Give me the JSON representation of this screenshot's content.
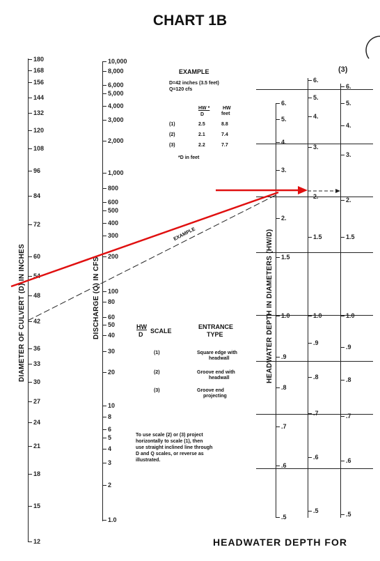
{
  "title": "CHART 1B",
  "footer": "HEADWATER DEPTH FOR",
  "axes": {
    "diameter": {
      "label": "DIAMETER OF CULVERT (D) IN INCHES",
      "ticks": [
        "180",
        "168",
        "156",
        "144",
        "132",
        "120",
        "108",
        "96",
        "84",
        "72",
        "60",
        "54",
        "48",
        "42",
        "36",
        "33",
        "30",
        "27",
        "24",
        "21",
        "18",
        "15",
        "12"
      ]
    },
    "discharge": {
      "label": "DISCHARGE (Q) IN CFS",
      "ticks": [
        "10,000",
        "8,000",
        "6,000",
        "5,000",
        "4,000",
        "3,000",
        "2,000",
        "1,000",
        "800",
        "600",
        "500",
        "400",
        "300",
        "200",
        "100",
        "80",
        "60",
        "50",
        "40",
        "30",
        "20",
        "10",
        "8",
        "6",
        "5",
        "4",
        "3",
        "2",
        "1.0"
      ]
    },
    "headwater": {
      "label": "HEADWATER DEPTH IN DIAMETERS (HW/D)",
      "scale1_ticks": [
        "6.",
        "5.",
        "4.",
        "3.",
        "2.",
        "1.5",
        "1.0",
        ".9",
        ".8",
        ".7",
        ".6",
        ".5"
      ],
      "scale2_ticks": [
        "6.",
        "5.",
        "4.",
        "3.",
        "2.",
        "1.5",
        "1.0",
        ".9",
        ".8",
        ".7",
        ".6",
        ".5"
      ],
      "scale3_ticks": [
        "6.",
        "5.",
        "4.",
        "3.",
        "2.",
        "1.5",
        "1.0",
        ".9",
        ".8",
        ".7",
        ".6",
        ".5"
      ],
      "scale3_header": "(3)"
    }
  },
  "example": {
    "heading": "EXAMPLE",
    "line1": "D=42 inches (3.5 feet)",
    "line2": "Q=120 cfs",
    "col_hwd": "HW *",
    "col_hwd_den": "D",
    "col_hw": "HW",
    "col_hw_unit": "feet",
    "rows": [
      {
        "scale": "(1)",
        "hwd": "2.5",
        "hw": "8.8"
      },
      {
        "scale": "(2)",
        "hwd": "2.1",
        "hw": "7.4"
      },
      {
        "scale": "(3)",
        "hwd": "2.2",
        "hw": "7.7"
      }
    ],
    "footnote": "*D in feet",
    "line_label": "EXAMPLE"
  },
  "legend": {
    "hw": "HW",
    "d": "D",
    "scale_header": "SCALE",
    "type_header_1": "ENTRANCE",
    "type_header_2": "TYPE",
    "rows": [
      {
        "scale": "(1)",
        "type1": "Square edge with",
        "type2": "headwall"
      },
      {
        "scale": "(2)",
        "type1": "Groove end with",
        "type2": "headwall"
      },
      {
        "scale": "(3)",
        "type1": "Groove end",
        "type2": "projecting"
      }
    ]
  },
  "instructions": [
    "To use scale (2) or (3) project",
    "horizontally to scale (1), then",
    "use straight inclined line through",
    "D and Q scales, or reverse as",
    "illustrated."
  ],
  "colors": {
    "annotation": "#e01010",
    "ink": "#222222"
  }
}
